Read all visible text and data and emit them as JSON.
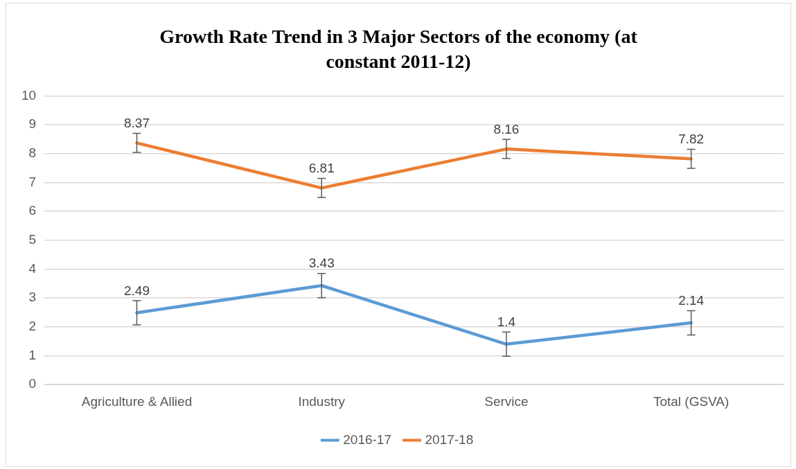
{
  "chart_data": {
    "type": "line",
    "title": "Growth Rate Trend in 3 Major Sectors of the economy (at constant 2011-12)",
    "categories": [
      "Agriculture & Allied",
      "Industry",
      "Service",
      "Total (GSVA)"
    ],
    "series": [
      {
        "name": "2016-17",
        "color": "#5b9bd5",
        "values": [
          2.49,
          3.43,
          1.4,
          2.14
        ],
        "errors": [
          0.42,
          0.42,
          0.42,
          0.42
        ]
      },
      {
        "name": "2017-18",
        "color": "#ed7d31",
        "values": [
          8.37,
          6.81,
          8.16,
          7.82
        ],
        "errors": [
          0.33,
          0.33,
          0.33,
          0.33
        ]
      }
    ],
    "ylim": [
      0,
      10
    ],
    "yticks": [
      0,
      1,
      2,
      3,
      4,
      5,
      6,
      7,
      8,
      9,
      10
    ],
    "grid": "y",
    "legend": "bottom",
    "marker": "none",
    "line_style": "solid",
    "data_labels": true
  }
}
